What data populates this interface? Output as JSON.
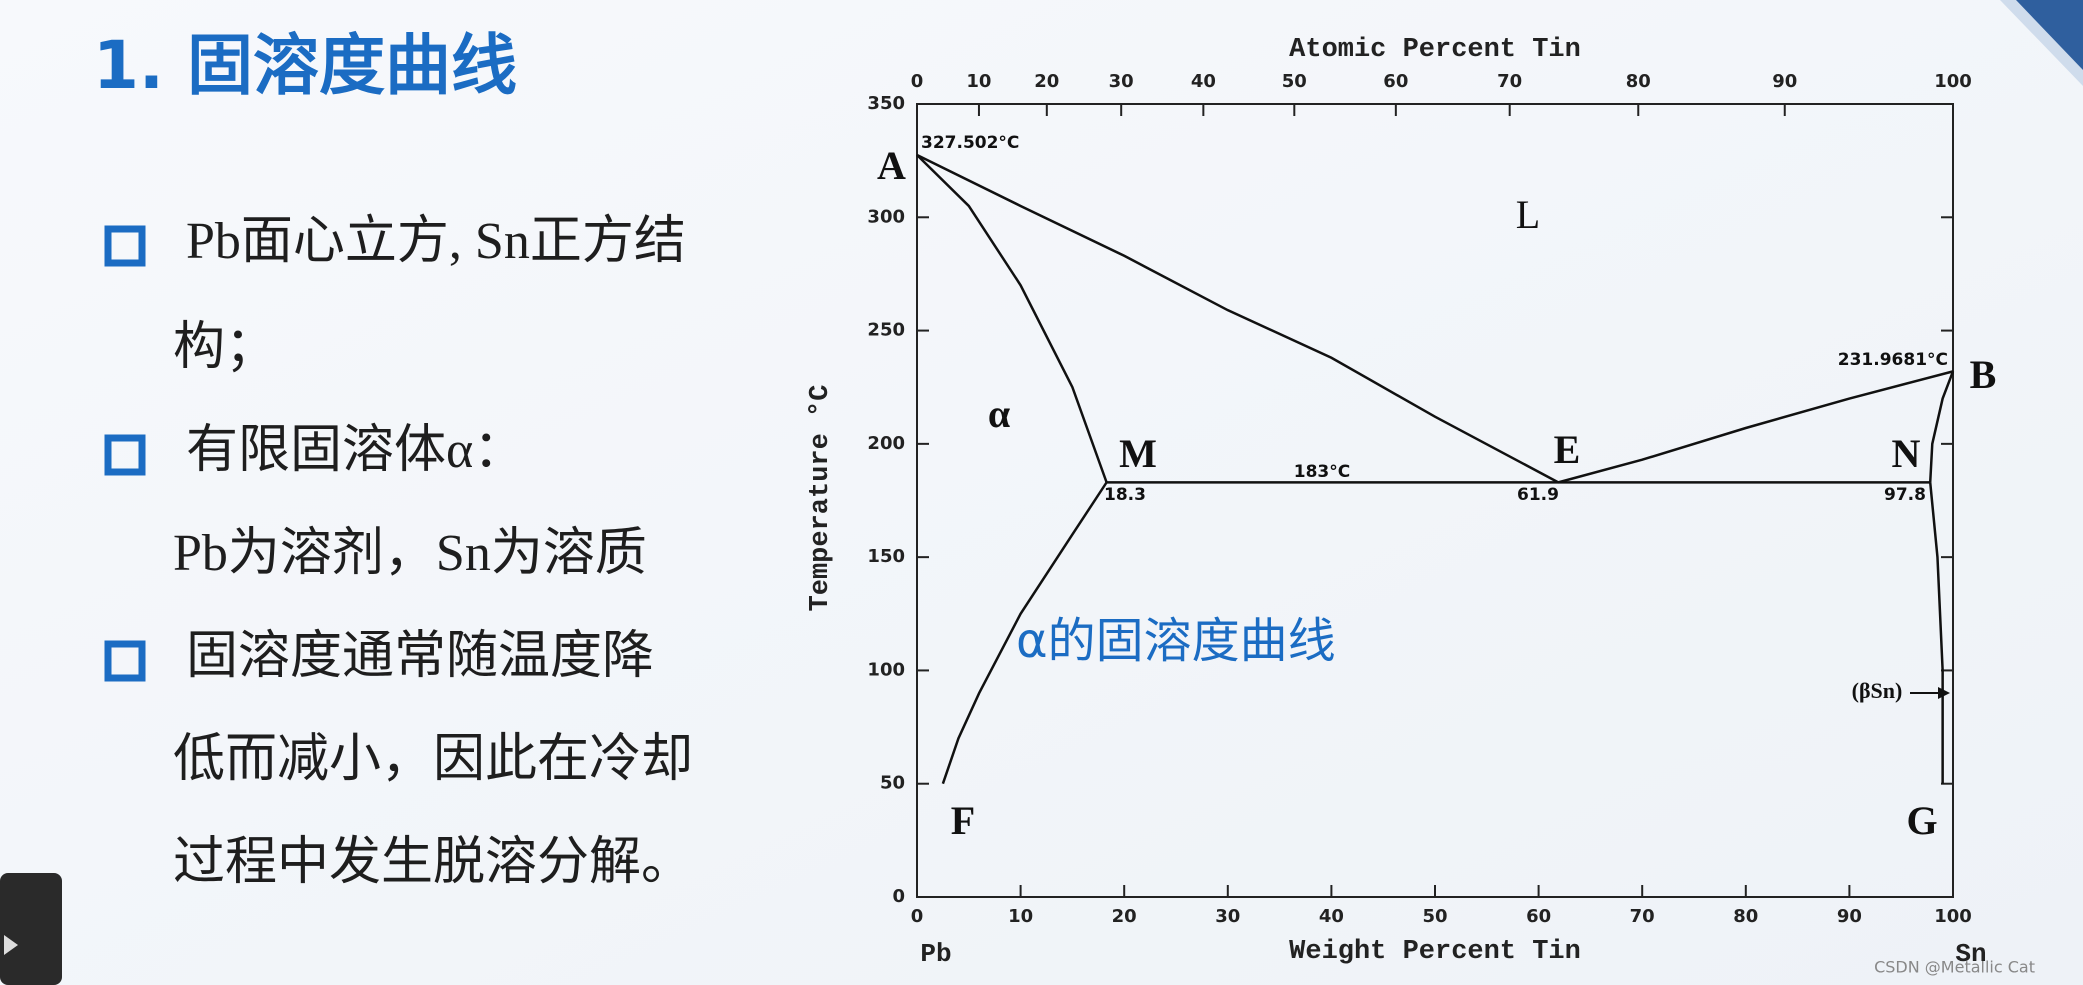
{
  "title": "1. 固溶度曲线",
  "bullets": [
    {
      "lines": [
        "Pb面心立方, Sn正方结",
        "构；"
      ]
    },
    {
      "lines": [
        "有限固溶体α：",
        "Pb为溶剂，Sn为溶质"
      ]
    },
    {
      "lines": [
        "固溶度通常随温度降",
        "低而减小，因此在冷却",
        "过程中发生脱溶分解。"
      ]
    }
  ],
  "watermark": "CSDN @Metallic Cat",
  "chart_data": {
    "type": "line",
    "title": "Atomic Percent Tin",
    "x_label": "Weight Percent Tin",
    "y_label": "Temperature °C",
    "xlim": [
      0,
      100
    ],
    "ylim": [
      0,
      350
    ],
    "xticks": [
      0,
      10,
      20,
      30,
      40,
      50,
      60,
      70,
      80,
      90,
      100
    ],
    "x2ticks": [
      0,
      {
        "value": 5.98,
        "label": "10"
      },
      {
        "value": 12.53,
        "label": "20"
      },
      {
        "value": 19.71,
        "label": "30"
      },
      {
        "value": 27.64,
        "label": "40"
      },
      {
        "value": 36.42,
        "label": "50"
      },
      {
        "value": 46.22,
        "label": "60"
      },
      {
        "value": 57.21,
        "label": "70"
      },
      {
        "value": 69.62,
        "label": "80"
      },
      {
        "value": 83.76,
        "label": "90"
      },
      100
    ],
    "yticks": [
      0,
      50,
      100,
      150,
      200,
      250,
      300,
      350
    ],
    "series": [
      {
        "color": "#111111",
        "x": [
          0,
          10,
          20,
          30,
          40,
          50,
          61.9
        ],
        "values": [
          327.5,
          305,
          283,
          259,
          238,
          212,
          183
        ]
      },
      {
        "color": "#111111",
        "x": [
          61.9,
          70,
          80,
          90,
          100
        ],
        "values": [
          183,
          193,
          207,
          220,
          232
        ]
      },
      {
        "color": "#111111",
        "x": [
          0,
          5,
          10,
          15,
          18.3
        ],
        "values": [
          327.5,
          305,
          270,
          225,
          183
        ]
      },
      {
        "color": "#111111",
        "x": [
          18.3,
          15,
          10,
          6,
          4,
          2.5
        ],
        "values": [
          183,
          160,
          125,
          90,
          70,
          50
        ]
      },
      {
        "color": "#111111",
        "x": [
          100,
          99,
          98,
          97.8
        ],
        "values": [
          232,
          220,
          200,
          183
        ]
      },
      {
        "color": "#111111",
        "x": [
          97.8,
          98.5,
          99,
          99
        ],
        "values": [
          183,
          150,
          100,
          50
        ]
      },
      {
        "color": "#111111",
        "x": [
          18.3,
          97.8
        ],
        "values": [
          183,
          183
        ]
      }
    ],
    "annotations": [
      "327.502°C",
      "A",
      "L",
      "231.9681°C",
      "B",
      "α",
      "M",
      "183°C",
      "E",
      "N",
      "18.3",
      "61.9",
      "97.8",
      "α的固溶度曲线",
      "(βSn)",
      "F",
      "G",
      "Pb",
      "Sn"
    ]
  }
}
